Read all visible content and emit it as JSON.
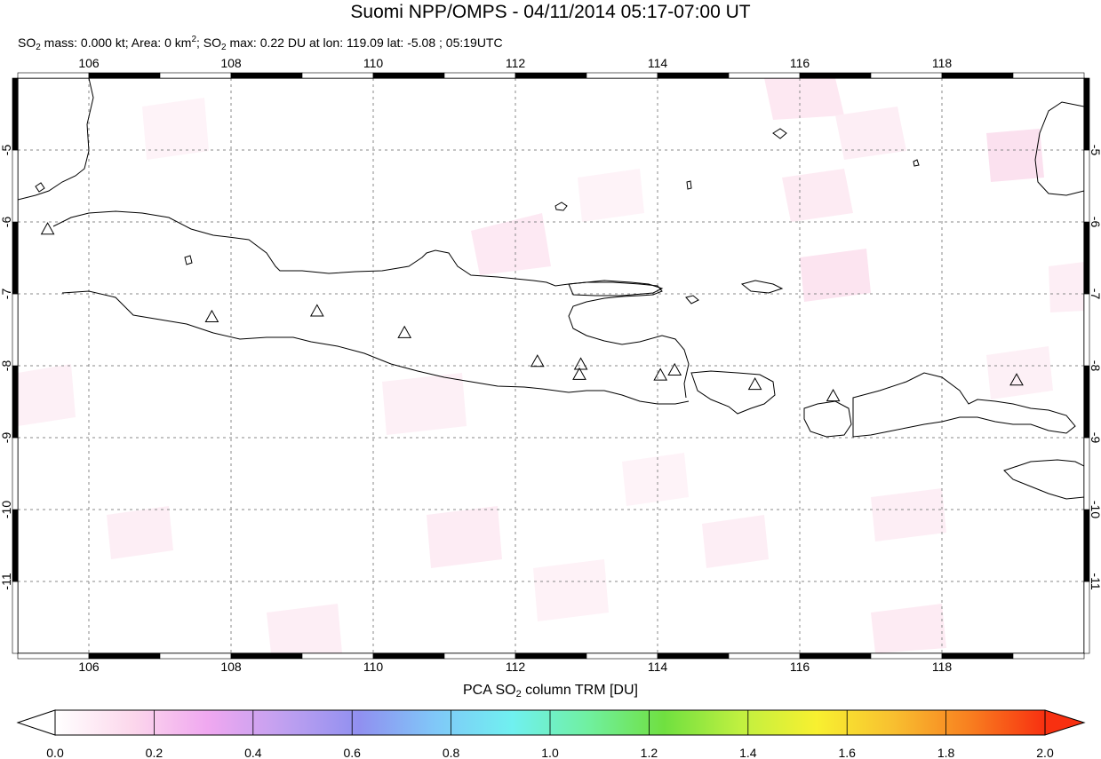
{
  "header": {
    "title": "Suomi NPP/OMPS - 04/11/2014 05:17-07:00 UT",
    "so2_label": "SO",
    "so2_sub": "2",
    "mass_text": " mass: 0.000 kt; Area: 0 km",
    "area_sup": "2",
    "sep_text": "; SO",
    "max_text": " max: 0.22 DU at lon: 119.09 lat: -5.08 ; 05:19UTC"
  },
  "map": {
    "lon_range": [
      105,
      120
    ],
    "lat_range": [
      -12,
      -4
    ],
    "lon_ticks": [
      "106",
      "108",
      "110",
      "112",
      "114",
      "116",
      "118"
    ],
    "lat_ticks": [
      "-5",
      "-6",
      "-7",
      "-8",
      "-9",
      "-10",
      "-11"
    ],
    "grid": true,
    "grid_style": "dashed"
  },
  "volcanoes": [
    {
      "lon": 105.42,
      "lat": -6.1
    },
    {
      "lon": 107.73,
      "lat": -7.32
    },
    {
      "lon": 109.21,
      "lat": -7.24
    },
    {
      "lon": 110.44,
      "lat": -7.54
    },
    {
      "lon": 112.31,
      "lat": -7.94
    },
    {
      "lon": 112.92,
      "lat": -7.98
    },
    {
      "lon": 112.9,
      "lat": -8.12
    },
    {
      "lon": 114.04,
      "lat": -8.13
    },
    {
      "lon": 114.24,
      "lat": -8.06
    },
    {
      "lon": 115.37,
      "lat": -8.26
    },
    {
      "lon": 116.47,
      "lat": -8.42
    },
    {
      "lon": 119.05,
      "lat": -8.2
    }
  ],
  "colorbar": {
    "title_prefix": "PCA SO",
    "title_sub": "2",
    "title_suffix": " column TRM [DU]",
    "tick_labels": [
      "0.0",
      "0.2",
      "0.4",
      "0.6",
      "0.8",
      "1.0",
      "1.2",
      "1.4",
      "1.6",
      "1.8",
      "2.0"
    ],
    "min": 0.0,
    "max": 2.0,
    "colors": [
      "#ffffff",
      "#fcd8ec",
      "#f0a8f0",
      "#c0a0f0",
      "#9090f0",
      "#80c8f8",
      "#70f0f0",
      "#70f0a0",
      "#70e040",
      "#c0f040",
      "#f8f030",
      "#f8c030",
      "#f88020",
      "#f83010"
    ]
  }
}
